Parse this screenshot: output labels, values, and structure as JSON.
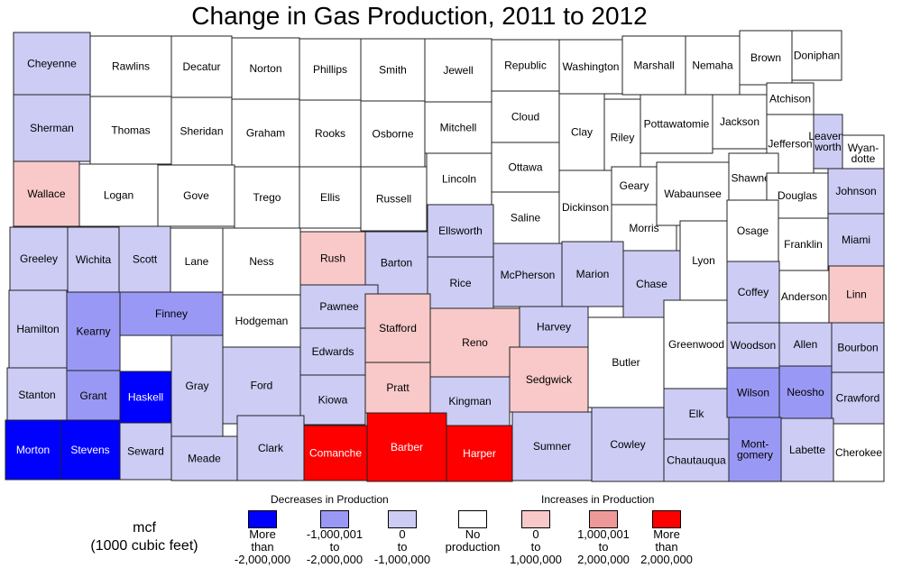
{
  "title": "Change in Gas Production, 2011 to 2012",
  "colors": {
    "more_than_neg2m": "#0000ff",
    "neg1m_to_neg2m": "#9999f5",
    "zero_to_neg1m": "#ccccf5",
    "no_production": "#ffffff",
    "zero_to_1m": "#f9c9c9",
    "1m_to_2m": "#ee9999",
    "more_than_2m": "#ff0000"
  },
  "legend": {
    "decreases_title": "Decreases in Production",
    "increases_title": "Increases in Production",
    "unit_label": "mcf\n(1000 cubic feet)",
    "items": [
      {
        "key": "more_than_neg2m",
        "label": "More\nthan\n-2,000,000"
      },
      {
        "key": "neg1m_to_neg2m",
        "label": "-1,000,001\nto\n-2,000,000"
      },
      {
        "key": "zero_to_neg1m",
        "label": "0\nto\n-1,000,000"
      },
      {
        "key": "no_production",
        "label": "No\nproduction"
      },
      {
        "key": "zero_to_1m",
        "label": "0\nto\n1,000,000"
      },
      {
        "key": "1m_to_2m",
        "label": "1,000,001\nto\n2,000,000"
      },
      {
        "key": "more_than_2m",
        "label": "More\nthan\n2,000,000"
      }
    ]
  },
  "counties": [
    {
      "name": "Cheyenne",
      "cat": "zero_to_neg1m"
    },
    {
      "name": "Rawlins",
      "cat": "no_production"
    },
    {
      "name": "Decatur",
      "cat": "no_production"
    },
    {
      "name": "Norton",
      "cat": "no_production"
    },
    {
      "name": "Phillips",
      "cat": "no_production"
    },
    {
      "name": "Smith",
      "cat": "no_production"
    },
    {
      "name": "Jewell",
      "cat": "no_production"
    },
    {
      "name": "Republic",
      "cat": "no_production"
    },
    {
      "name": "Washington",
      "cat": "no_production"
    },
    {
      "name": "Marshall",
      "cat": "no_production"
    },
    {
      "name": "Nemaha",
      "cat": "no_production"
    },
    {
      "name": "Brown",
      "cat": "no_production"
    },
    {
      "name": "Doniphan",
      "cat": "no_production"
    },
    {
      "name": "Sherman",
      "cat": "zero_to_neg1m"
    },
    {
      "name": "Thomas",
      "cat": "no_production"
    },
    {
      "name": "Sheridan",
      "cat": "no_production"
    },
    {
      "name": "Graham",
      "cat": "no_production"
    },
    {
      "name": "Rooks",
      "cat": "no_production"
    },
    {
      "name": "Osborne",
      "cat": "no_production"
    },
    {
      "name": "Mitchell",
      "cat": "no_production"
    },
    {
      "name": "Cloud",
      "cat": "no_production"
    },
    {
      "name": "Clay",
      "cat": "no_production"
    },
    {
      "name": "Riley",
      "cat": "no_production"
    },
    {
      "name": "Pottawatomie",
      "cat": "no_production"
    },
    {
      "name": "Jackson",
      "cat": "no_production"
    },
    {
      "name": "Atchison",
      "cat": "no_production"
    },
    {
      "name": "Jefferson",
      "cat": "no_production"
    },
    {
      "name": "Leaven-\nworth",
      "cat": "zero_to_neg1m"
    },
    {
      "name": "Wyan-\ndotte",
      "cat": "no_production"
    },
    {
      "name": "Wallace",
      "cat": "zero_to_1m"
    },
    {
      "name": "Logan",
      "cat": "no_production"
    },
    {
      "name": "Gove",
      "cat": "no_production"
    },
    {
      "name": "Trego",
      "cat": "no_production"
    },
    {
      "name": "Ellis",
      "cat": "no_production"
    },
    {
      "name": "Russell",
      "cat": "no_production"
    },
    {
      "name": "Lincoln",
      "cat": "no_production"
    },
    {
      "name": "Ottawa",
      "cat": "no_production"
    },
    {
      "name": "Saline",
      "cat": "no_production"
    },
    {
      "name": "Dickinson",
      "cat": "no_production"
    },
    {
      "name": "Geary",
      "cat": "no_production"
    },
    {
      "name": "Morris",
      "cat": "no_production"
    },
    {
      "name": "Wabaunsee",
      "cat": "no_production"
    },
    {
      "name": "Shawnee",
      "cat": "no_production"
    },
    {
      "name": "Douglas",
      "cat": "no_production"
    },
    {
      "name": "Johnson",
      "cat": "zero_to_neg1m"
    },
    {
      "name": "Greeley",
      "cat": "zero_to_neg1m"
    },
    {
      "name": "Wichita",
      "cat": "zero_to_neg1m"
    },
    {
      "name": "Scott",
      "cat": "zero_to_neg1m"
    },
    {
      "name": "Lane",
      "cat": "no_production"
    },
    {
      "name": "Ness",
      "cat": "no_production"
    },
    {
      "name": "Rush",
      "cat": "zero_to_1m"
    },
    {
      "name": "Barton",
      "cat": "zero_to_neg1m"
    },
    {
      "name": "Ellsworth",
      "cat": "zero_to_neg1m"
    },
    {
      "name": "Rice",
      "cat": "zero_to_neg1m"
    },
    {
      "name": "McPherson",
      "cat": "zero_to_neg1m"
    },
    {
      "name": "Marion",
      "cat": "zero_to_neg1m"
    },
    {
      "name": "Chase",
      "cat": "zero_to_neg1m"
    },
    {
      "name": "Lyon",
      "cat": "no_production"
    },
    {
      "name": "Osage",
      "cat": "no_production"
    },
    {
      "name": "Franklin",
      "cat": "no_production"
    },
    {
      "name": "Miami",
      "cat": "zero_to_neg1m"
    },
    {
      "name": "Hamilton",
      "cat": "zero_to_neg1m"
    },
    {
      "name": "Kearny",
      "cat": "neg1m_to_neg2m"
    },
    {
      "name": "Finney",
      "cat": "neg1m_to_neg2m"
    },
    {
      "name": "Hodgeman",
      "cat": "no_production"
    },
    {
      "name": "Pawnee",
      "cat": "zero_to_neg1m"
    },
    {
      "name": "Edwards",
      "cat": "zero_to_neg1m"
    },
    {
      "name": "Stafford",
      "cat": "zero_to_1m"
    },
    {
      "name": "Reno",
      "cat": "zero_to_1m"
    },
    {
      "name": "Harvey",
      "cat": "zero_to_neg1m"
    },
    {
      "name": "Butler",
      "cat": "no_production"
    },
    {
      "name": "Greenwood",
      "cat": "no_production"
    },
    {
      "name": "Coffey",
      "cat": "zero_to_neg1m"
    },
    {
      "name": "Anderson",
      "cat": "no_production"
    },
    {
      "name": "Linn",
      "cat": "zero_to_1m"
    },
    {
      "name": "Woodson",
      "cat": "zero_to_neg1m"
    },
    {
      "name": "Allen",
      "cat": "zero_to_neg1m"
    },
    {
      "name": "Bourbon",
      "cat": "zero_to_neg1m"
    },
    {
      "name": "Stanton",
      "cat": "zero_to_neg1m"
    },
    {
      "name": "Grant",
      "cat": "neg1m_to_neg2m"
    },
    {
      "name": "Haskell",
      "cat": "more_than_neg2m"
    },
    {
      "name": "Gray",
      "cat": "zero_to_neg1m"
    },
    {
      "name": "Ford",
      "cat": "zero_to_neg1m"
    },
    {
      "name": "Kiowa",
      "cat": "zero_to_neg1m"
    },
    {
      "name": "Pratt",
      "cat": "zero_to_1m"
    },
    {
      "name": "Kingman",
      "cat": "zero_to_neg1m"
    },
    {
      "name": "Sedgwick",
      "cat": "zero_to_1m"
    },
    {
      "name": "Elk",
      "cat": "zero_to_neg1m"
    },
    {
      "name": "Wilson",
      "cat": "neg1m_to_neg2m"
    },
    {
      "name": "Neosho",
      "cat": "neg1m_to_neg2m"
    },
    {
      "name": "Crawford",
      "cat": "zero_to_neg1m"
    },
    {
      "name": "Morton",
      "cat": "more_than_neg2m"
    },
    {
      "name": "Stevens",
      "cat": "more_than_neg2m"
    },
    {
      "name": "Seward",
      "cat": "zero_to_neg1m"
    },
    {
      "name": "Meade",
      "cat": "zero_to_neg1m"
    },
    {
      "name": "Clark",
      "cat": "zero_to_neg1m"
    },
    {
      "name": "Comanche",
      "cat": "more_than_2m"
    },
    {
      "name": "Barber",
      "cat": "more_than_2m"
    },
    {
      "name": "Harper",
      "cat": "more_than_2m"
    },
    {
      "name": "Sumner",
      "cat": "zero_to_neg1m"
    },
    {
      "name": "Cowley",
      "cat": "zero_to_neg1m"
    },
    {
      "name": "Chautauqua",
      "cat": "zero_to_neg1m"
    },
    {
      "name": "Mont-\ngomery",
      "cat": "neg1m_to_neg2m"
    },
    {
      "name": "Labette",
      "cat": "zero_to_neg1m"
    },
    {
      "name": "Cherokee",
      "cat": "no_production"
    }
  ]
}
